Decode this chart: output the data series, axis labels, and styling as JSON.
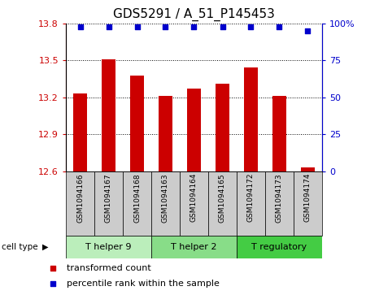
{
  "title": "GDS5291 / A_51_P145453",
  "samples": [
    "GSM1094166",
    "GSM1094167",
    "GSM1094168",
    "GSM1094163",
    "GSM1094164",
    "GSM1094165",
    "GSM1094172",
    "GSM1094173",
    "GSM1094174"
  ],
  "bar_values": [
    13.23,
    13.51,
    13.38,
    13.21,
    13.27,
    13.31,
    13.44,
    13.21,
    12.63
  ],
  "blue_dot_values": [
    98,
    98,
    98,
    98,
    98,
    98,
    98,
    98,
    95
  ],
  "ylim_left": [
    12.6,
    13.8
  ],
  "ylim_right": [
    0,
    100
  ],
  "yticks_left": [
    12.6,
    12.9,
    13.2,
    13.5,
    13.8
  ],
  "yticks_right": [
    0,
    25,
    50,
    75,
    100
  ],
  "bar_color": "#cc0000",
  "dot_color": "#0000cc",
  "grid_color": "#000000",
  "cell_type_groups": [
    {
      "label": "T helper 9",
      "start": 0,
      "end": 3,
      "color": "#bbeebb"
    },
    {
      "label": "T helper 2",
      "start": 3,
      "end": 6,
      "color": "#88dd88"
    },
    {
      "label": "T regulatory",
      "start": 6,
      "end": 9,
      "color": "#44cc44"
    }
  ],
  "legend_items": [
    {
      "label": "transformed count",
      "color": "#cc0000"
    },
    {
      "label": "percentile rank within the sample",
      "color": "#0000cc"
    }
  ],
  "bar_width": 0.5,
  "background_color": "#ffffff",
  "sample_box_color": "#cccccc",
  "title_fontsize": 11,
  "tick_fontsize": 8,
  "sample_fontsize": 6.5,
  "group_fontsize": 8,
  "legend_fontsize": 8
}
